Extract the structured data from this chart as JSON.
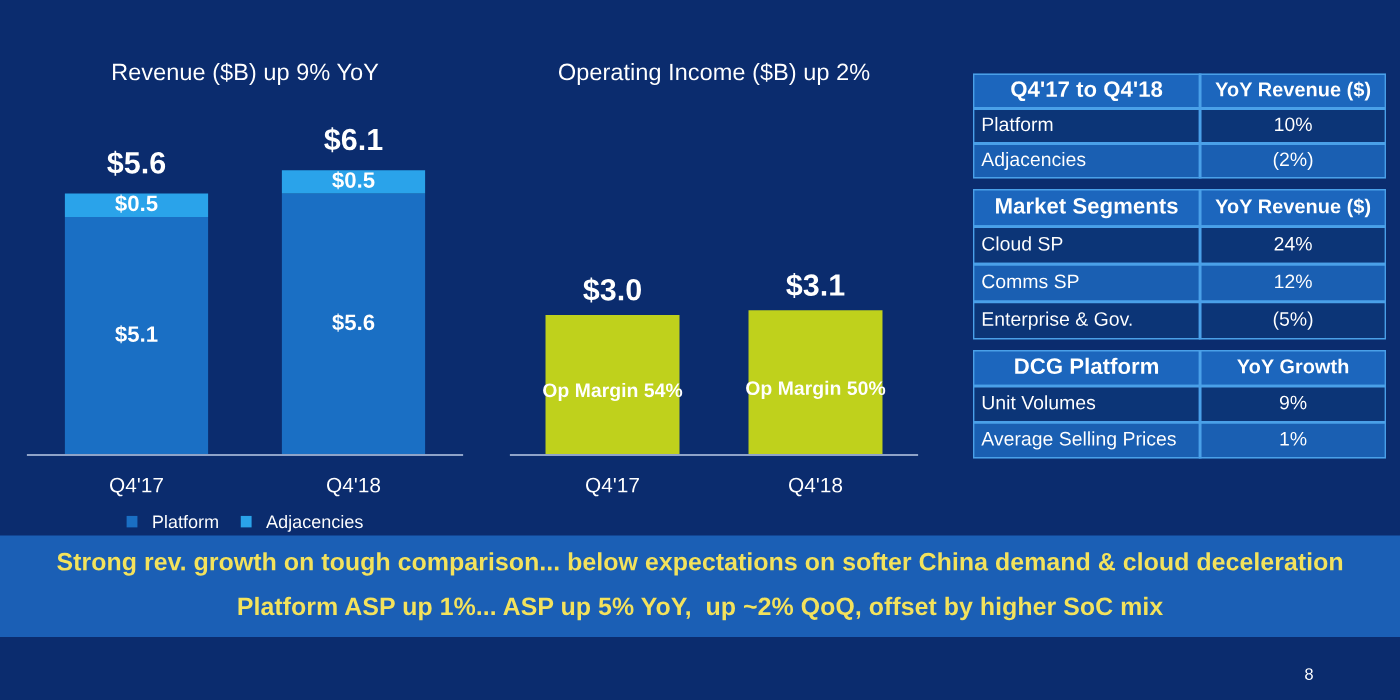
{
  "chart_data": [
    {
      "type": "bar",
      "title": "Revenue ($B) up 9% YoY",
      "categories": [
        "Q4'17",
        "Q4'18"
      ],
      "stacked": true,
      "legend": "bottom",
      "series": [
        {
          "name": "Platform",
          "color": "#1a6fc4",
          "values": [
            5.1,
            5.6
          ],
          "value_labels": [
            "$5.1",
            "$5.6"
          ]
        },
        {
          "name": "Adjacencies",
          "color": "#2aa3ea",
          "values": [
            0.5,
            0.5
          ],
          "value_labels": [
            "$0.5",
            "$0.5"
          ]
        }
      ],
      "totals": [
        "$5.6",
        "$6.1"
      ]
    },
    {
      "type": "bar",
      "title": "Operating Income ($B) up 2%",
      "categories": [
        "Q4'17",
        "Q4'18"
      ],
      "values": [
        3.0,
        3.1
      ],
      "color": "#bfd11c",
      "value_labels": [
        "$3.0",
        "$3.1"
      ],
      "annotations": [
        "Op Margin 54%",
        "Op Margin 50%"
      ]
    },
    {
      "type": "other",
      "title": "Q4'17 to Q4'18",
      "subtitle": "YoY Revenue ($)",
      "annotations": [
        "Platform",
        "10%",
        "Adjacencies",
        "(2%)"
      ]
    },
    {
      "type": "other",
      "title": "Market Segments",
      "subtitle": "YoY Revenue ($)",
      "annotations": [
        "Cloud SP",
        "24%",
        "Comms SP",
        "12%",
        "Enterprise & Gov.",
        "(5%)"
      ]
    },
    {
      "type": "other",
      "title": "DCG Platform",
      "subtitle": "YoY Growth",
      "annotations": [
        "Unit Volumes",
        "9%",
        "Average Selling Prices",
        "1%"
      ]
    },
    {
      "type": "other",
      "annotations": [
        "Strong rev. growth on tough comparison... below expectations on softer China demand & cloud deceleration",
        "Platform ASP up 1%... ASP up 5% YoY,  up ~2% QoQ, offset by higher SoC mix",
        "8"
      ]
    }
  ]
}
